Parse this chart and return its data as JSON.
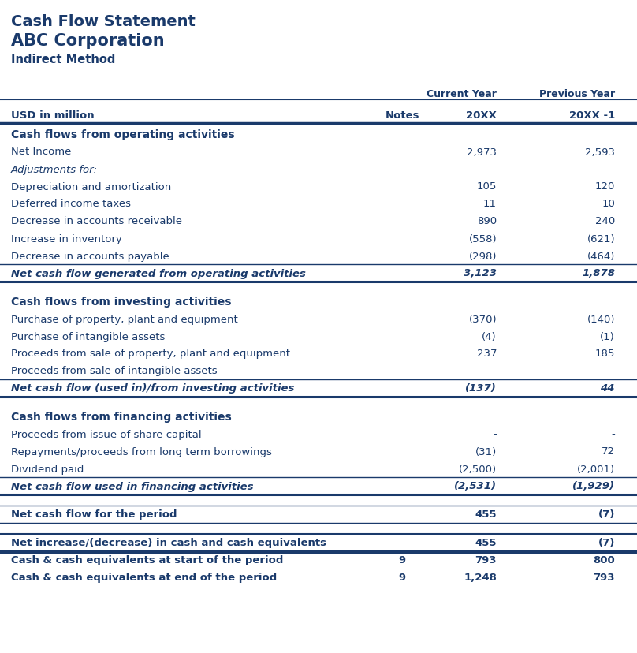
{
  "title1": "Cash Flow Statement",
  "title2": "ABC Corporation",
  "title3": "Indirect Method",
  "dark_blue": "#1a3a6b",
  "rows": [
    {
      "text": "Cash flows from operating activities",
      "style": "section_header",
      "cur": "",
      "prev": "",
      "notes": ""
    },
    {
      "text": "Net Income",
      "style": "normal",
      "cur": "2,973",
      "prev": "2,593",
      "notes": ""
    },
    {
      "text": "Adjustments for:",
      "style": "italic",
      "cur": "",
      "prev": "",
      "notes": ""
    },
    {
      "text": "Depreciation and amortization",
      "style": "normal",
      "cur": "105",
      "prev": "120",
      "notes": ""
    },
    {
      "text": "Deferred income taxes",
      "style": "normal",
      "cur": "11",
      "prev": "10",
      "notes": ""
    },
    {
      "text": "Decrease in accounts receivable",
      "style": "normal",
      "cur": "890",
      "prev": "240",
      "notes": ""
    },
    {
      "text": "Increase in inventory",
      "style": "normal",
      "cur": "(558)",
      "prev": "(621)",
      "notes": ""
    },
    {
      "text": "Decrease in accounts payable",
      "style": "normal",
      "cur": "(298)",
      "prev": "(464)",
      "notes": ""
    },
    {
      "text": "Net cash flow generated from operating activities",
      "style": "subtotal",
      "cur": "3,123",
      "prev": "1,878",
      "notes": ""
    },
    {
      "text": "",
      "style": "spacer",
      "cur": "",
      "prev": "",
      "notes": ""
    },
    {
      "text": "Cash flows from investing activities",
      "style": "section_header",
      "cur": "",
      "prev": "",
      "notes": ""
    },
    {
      "text": "Purchase of property, plant and equipment",
      "style": "normal",
      "cur": "(370)",
      "prev": "(140)",
      "notes": ""
    },
    {
      "text": "Purchase of intangible assets",
      "style": "normal",
      "cur": "(4)",
      "prev": "(1)",
      "notes": ""
    },
    {
      "text": "Proceeds from sale of property, plant and equipment",
      "style": "normal",
      "cur": "237",
      "prev": "185",
      "notes": ""
    },
    {
      "text": "Proceeds from sale of intangible assets",
      "style": "normal",
      "cur": "-",
      "prev": "-",
      "notes": ""
    },
    {
      "text": "Net cash flow (used in)/from investing activities",
      "style": "subtotal",
      "cur": "(137)",
      "prev": "44",
      "notes": ""
    },
    {
      "text": "",
      "style": "spacer",
      "cur": "",
      "prev": "",
      "notes": ""
    },
    {
      "text": "Cash flows from financing activities",
      "style": "section_header",
      "cur": "",
      "prev": "",
      "notes": ""
    },
    {
      "text": "Proceeds from issue of share capital",
      "style": "normal",
      "cur": "-",
      "prev": "-",
      "notes": ""
    },
    {
      "text": "Repayments/proceeds from long term borrowings",
      "style": "normal",
      "cur": "(31)",
      "prev": "72",
      "notes": ""
    },
    {
      "text": "Dividend paid",
      "style": "normal",
      "cur": "(2,500)",
      "prev": "(2,001)",
      "notes": ""
    },
    {
      "text": "Net cash flow used in financing activities",
      "style": "subtotal",
      "cur": "(2,531)",
      "prev": "(1,929)",
      "notes": ""
    },
    {
      "text": "",
      "style": "spacer",
      "cur": "",
      "prev": "",
      "notes": ""
    },
    {
      "text": "Net cash flow for the period",
      "style": "period_total",
      "cur": "455",
      "prev": "(7)",
      "notes": ""
    },
    {
      "text": "",
      "style": "spacer",
      "cur": "",
      "prev": "",
      "notes": ""
    },
    {
      "text": "Net increase/(decrease) in cash and cash equivalents",
      "style": "bold_line",
      "cur": "455",
      "prev": "(7)",
      "notes": ""
    },
    {
      "text": "Cash & cash equivalents at start of the period",
      "style": "bold_normal",
      "cur": "793",
      "prev": "800",
      "notes": "9"
    },
    {
      "text": "Cash & cash equivalents at end of the period",
      "style": "bold_normal_last",
      "cur": "1,248",
      "prev": "793",
      "notes": "9"
    }
  ]
}
